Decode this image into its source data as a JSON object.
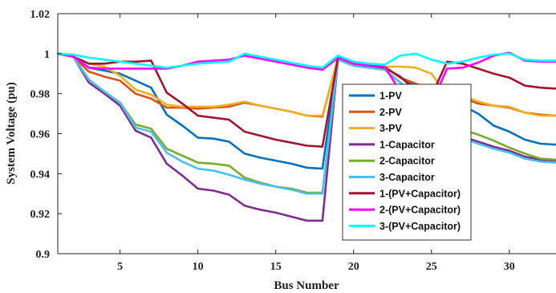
{
  "chart_data": {
    "type": "line",
    "title": "",
    "xlabel": "Bus Number",
    "ylabel": "System Voltage (pu)",
    "xlim": [
      1,
      33
    ],
    "ylim": [
      0.9,
      1.02
    ],
    "xticks": [
      5,
      10,
      15,
      20,
      25,
      30
    ],
    "yticks": [
      0.9,
      0.92,
      0.94,
      0.96,
      0.98,
      1,
      1.02
    ],
    "ytick_labels": [
      "0.9",
      "0.92",
      "0.94",
      "0.96",
      "0.98",
      "1",
      "1.02"
    ],
    "grid": false,
    "legend_position": "center-right",
    "x": [
      1,
      2,
      3,
      4,
      5,
      6,
      7,
      8,
      9,
      10,
      11,
      12,
      13,
      14,
      15,
      16,
      17,
      18,
      19,
      20,
      21,
      22,
      23,
      24,
      25,
      26,
      27,
      28,
      29,
      30,
      31,
      32,
      33
    ],
    "series": [
      {
        "name": "1-PV",
        "color": "#0072BD",
        "values": [
          1,
          0.9985,
          0.993,
          0.9915,
          0.99,
          0.9865,
          0.983,
          0.9695,
          0.964,
          0.958,
          0.9575,
          0.956,
          0.95,
          0.948,
          0.9465,
          0.945,
          0.943,
          0.9425,
          0.998,
          0.995,
          0.994,
          0.9935,
          0.988,
          0.984,
          0.981,
          0.979,
          0.974,
          0.97,
          0.964,
          0.961,
          0.957,
          0.955,
          0.9545
        ]
      },
      {
        "name": "2-PV",
        "color": "#D95319",
        "values": [
          1,
          0.9985,
          0.991,
          0.9885,
          0.9865,
          0.98,
          0.9775,
          0.973,
          0.973,
          0.9725,
          0.973,
          0.9735,
          0.9755,
          0.974,
          0.9725,
          0.971,
          0.969,
          0.9685,
          0.998,
          0.995,
          0.994,
          0.9935,
          0.988,
          0.985,
          0.982,
          0.98,
          0.978,
          0.975,
          0.974,
          0.973,
          0.9705,
          0.9695,
          0.969
        ]
      },
      {
        "name": "3-PV",
        "color": "#EDB120",
        "values": [
          1,
          0.9985,
          0.995,
          0.9935,
          0.989,
          0.982,
          0.9795,
          0.9745,
          0.9735,
          0.9735,
          0.9735,
          0.9745,
          0.976,
          0.974,
          0.9725,
          0.971,
          0.969,
          0.969,
          0.998,
          0.995,
          0.994,
          0.9935,
          0.9935,
          0.993,
          0.99,
          0.979,
          0.979,
          0.976,
          0.974,
          0.9735,
          0.9705,
          0.969,
          0.969
        ]
      },
      {
        "name": "1-Capacitor",
        "color": "#7E2F8E",
        "values": [
          1,
          0.9985,
          0.9855,
          0.98,
          0.974,
          0.9615,
          0.958,
          0.945,
          0.939,
          0.9325,
          0.9315,
          0.9295,
          0.924,
          0.922,
          0.9205,
          0.9185,
          0.9165,
          0.9165,
          0.997,
          0.994,
          0.993,
          0.992,
          0.9855,
          0.98,
          0.963,
          0.9605,
          0.9585,
          0.956,
          0.9535,
          0.9515,
          0.9485,
          0.947,
          0.9465
        ]
      },
      {
        "name": "2-Capacitor",
        "color": "#77AC30",
        "values": [
          1,
          0.9985,
          0.987,
          0.981,
          0.9755,
          0.9645,
          0.9625,
          0.9525,
          0.949,
          0.9455,
          0.945,
          0.944,
          0.938,
          0.9355,
          0.9335,
          0.9325,
          0.9305,
          0.9305,
          0.997,
          0.994,
          0.993,
          0.992,
          0.9855,
          0.98,
          0.9665,
          0.964,
          0.962,
          0.9595,
          0.9565,
          0.953,
          0.95,
          0.9475,
          0.947
        ]
      },
      {
        "name": "3-Capacitor",
        "color": "#4DBEEE",
        "values": [
          1,
          0.9985,
          0.987,
          0.981,
          0.9755,
          0.963,
          0.961,
          0.9505,
          0.946,
          0.9425,
          0.9415,
          0.9395,
          0.937,
          0.935,
          0.9335,
          0.932,
          0.93,
          0.93,
          0.997,
          0.994,
          0.993,
          0.992,
          0.9855,
          0.98,
          0.962,
          0.9595,
          0.9575,
          0.955,
          0.9525,
          0.9505,
          0.9475,
          0.946,
          0.9455
        ]
      },
      {
        "name": "1-(PV+Capacitor)",
        "color": "#A2142F",
        "values": [
          1,
          0.9985,
          0.995,
          0.995,
          0.996,
          0.996,
          0.9965,
          0.9805,
          0.975,
          0.969,
          0.968,
          0.967,
          0.961,
          0.959,
          0.957,
          0.9555,
          0.954,
          0.9535,
          0.998,
          0.995,
          0.994,
          0.993,
          0.9885,
          0.9815,
          0.979,
          0.996,
          0.995,
          0.9925,
          0.99,
          0.988,
          0.984,
          0.983,
          0.9825
        ]
      },
      {
        "name": "2-(PV+Capacitor)",
        "color": "#FF00FF",
        "values": [
          1,
          0.9985,
          0.993,
          0.9925,
          0.9925,
          0.9925,
          0.9925,
          0.9925,
          0.994,
          0.996,
          0.9965,
          0.997,
          0.999,
          0.9975,
          0.996,
          0.9945,
          0.993,
          0.992,
          0.998,
          0.995,
          0.994,
          0.9935,
          0.981,
          0.98,
          0.975,
          0.9925,
          0.993,
          0.9955,
          0.999,
          1.0005,
          0.9965,
          0.996,
          0.996
        ]
      },
      {
        "name": "3-(PV+Capacitor)",
        "color": "#00FFFF",
        "values": [
          1,
          0.9995,
          0.998,
          0.997,
          0.996,
          0.995,
          0.994,
          0.993,
          0.994,
          0.995,
          0.9955,
          0.996,
          1.0,
          0.9985,
          0.997,
          0.9955,
          0.994,
          0.993,
          0.999,
          0.996,
          0.995,
          0.9945,
          0.999,
          1.0,
          0.997,
          0.995,
          0.996,
          0.998,
          0.9995,
          1.0,
          0.997,
          0.9965,
          0.9965
        ]
      }
    ]
  }
}
